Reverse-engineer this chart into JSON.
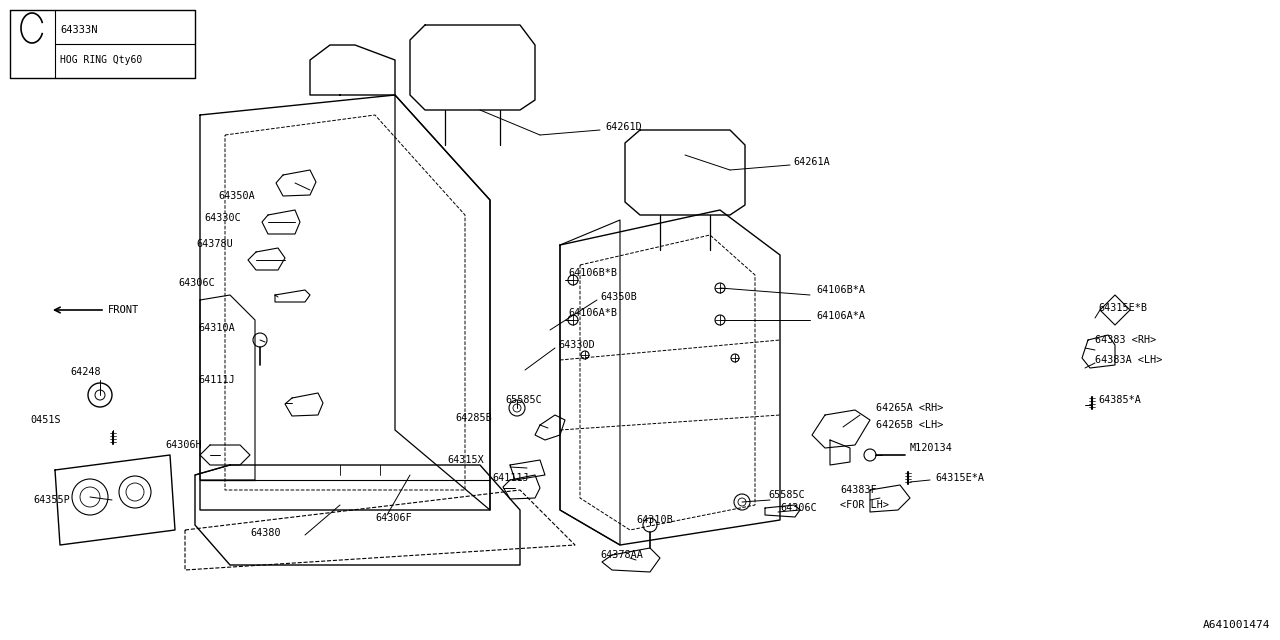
{
  "bg_color": "#ffffff",
  "line_color": "#000000",
  "fig_width": 12.8,
  "fig_height": 6.4,
  "dpi": 100,
  "watermark": "A641001474",
  "legend_part": "64333N",
  "legend_desc": "HOG RING Qty60"
}
